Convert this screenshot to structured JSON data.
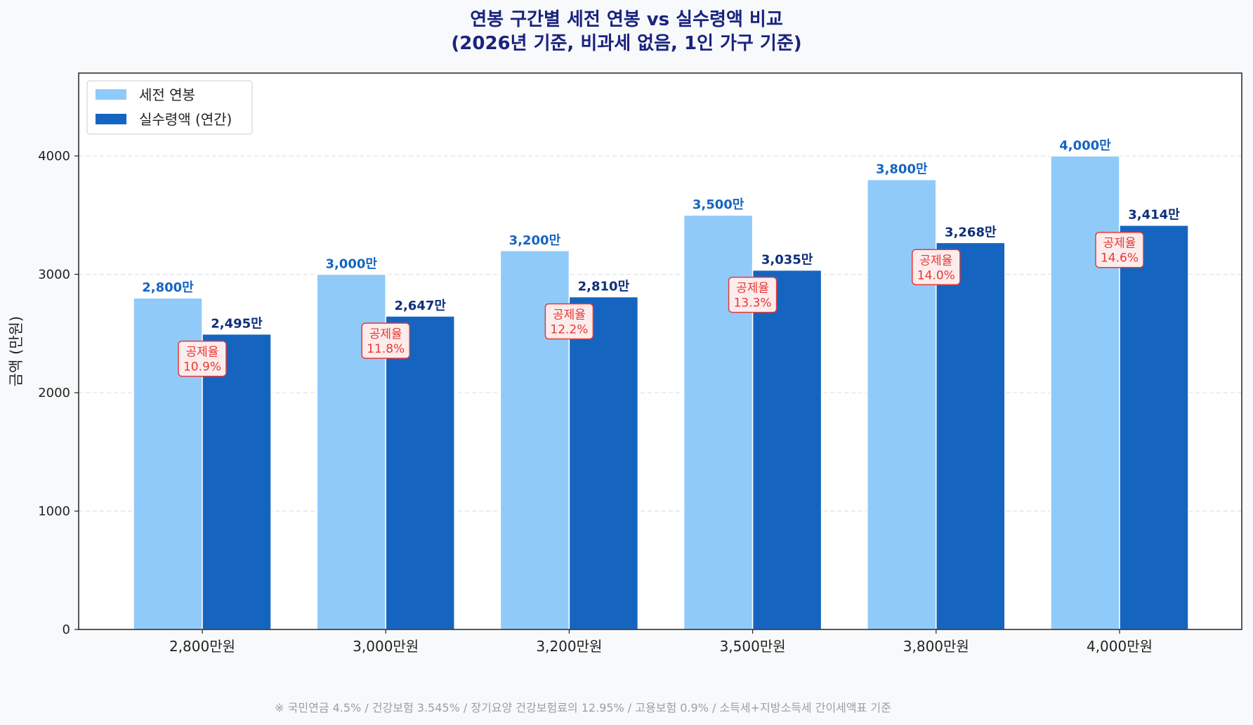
{
  "chart_data": {
    "type": "bar",
    "title_lines": [
      "연봉 구간별 세전 연봉 vs 실수령액 비교",
      "(2026년 기준, 비과세 없음, 1인 가구 기준)"
    ],
    "xlabel": "",
    "ylabel": "금액 (만원)",
    "ylim": [
      0,
      4700
    ],
    "yticks": [
      0,
      1000,
      2000,
      3000,
      4000
    ],
    "grid": "horizontal dashed",
    "legend_position": "top-left",
    "categories": [
      "2,800만원",
      "3,000만원",
      "3,200만원",
      "3,500만원",
      "3,800만원",
      "4,000만원"
    ],
    "series": [
      {
        "name": "세전 연봉",
        "color": "#90caf9",
        "values": [
          2800,
          3000,
          3200,
          3500,
          3800,
          4000
        ],
        "labels": [
          "2,800만",
          "3,000만",
          "3,200만",
          "3,500만",
          "3,800만",
          "4,000만"
        ]
      },
      {
        "name": "실수령액 (연간)",
        "color": "#1565c0",
        "values": [
          2495,
          2647,
          2810,
          3035,
          3268,
          3414
        ],
        "labels": [
          "2,495만",
          "2,647만",
          "2,810만",
          "3,035만",
          "3,268만",
          "3,414만"
        ]
      }
    ],
    "deduction_rate_caption": "공제율",
    "deduction_rates": [
      "10.9%",
      "11.8%",
      "12.2%",
      "13.3%",
      "14.0%",
      "14.6%"
    ],
    "footnote": "※ 국민연금 4.5% / 건강보험 3.545% / 장기요양 건강보험료의 12.95% / 고용보험 0.9% / 소득세+지방소득세 간이세액표 기준"
  }
}
